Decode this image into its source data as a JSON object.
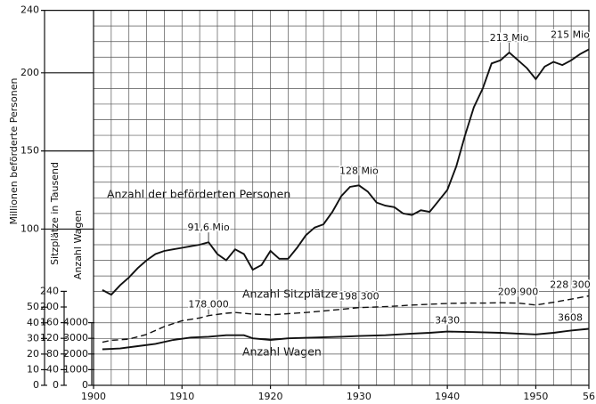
{
  "chart_data": {
    "type": "line",
    "ylabel": "Millionen beförderte Personen",
    "y2label": "Sitzplätze in Tausend",
    "y3label": "Anzahl Wagen",
    "annotations": [
      "Anzahl der beförderten Personen",
      "Anzahl Sitzplätze",
      "Anzahl Wagen"
    ],
    "xlim": [
      1900,
      1956
    ],
    "xticks": [
      1900,
      1910,
      1920,
      1930,
      1940,
      1950,
      {
        "value": 1956,
        "label": "56"
      }
    ],
    "ylim": [
      0,
      240
    ],
    "yticks": [
      0,
      10,
      20,
      30,
      40,
      50,
      100,
      150,
      200,
      240
    ],
    "y2lim": [
      0,
      240
    ],
    "y2ticks": [
      0,
      40,
      80,
      120,
      160,
      200,
      240
    ],
    "y3lim": [
      0,
      4000
    ],
    "y3ticks": [
      0,
      1000,
      2000,
      3000,
      4000
    ],
    "grid": true,
    "series": [
      {
        "name": "Anzahl der beförderten Personen",
        "color": "#111111",
        "axis": "y",
        "dash": false,
        "x": [
          1901,
          1902,
          1903,
          1904,
          1905,
          1906,
          1907,
          1908,
          1909,
          1910,
          1911,
          1912,
          1913,
          1914,
          1915,
          1916,
          1917,
          1918,
          1919,
          1920,
          1921,
          1922,
          1923,
          1924,
          1925,
          1926,
          1927,
          1928,
          1929,
          1930,
          1931,
          1932,
          1933,
          1934,
          1935,
          1936,
          1937,
          1938,
          1939,
          1940,
          1941,
          1942,
          1943,
          1944,
          1945,
          1946,
          1947,
          1948,
          1949,
          1950,
          1951,
          1952,
          1953,
          1954,
          1955,
          1956
        ],
        "values": [
          61,
          58,
          64,
          69,
          75,
          80,
          84,
          86,
          87,
          88,
          89,
          90,
          91.6,
          84,
          80,
          87,
          84,
          74,
          77,
          86,
          81,
          81,
          88,
          96,
          101,
          103,
          111,
          121,
          127,
          128,
          124,
          117,
          115,
          114,
          110,
          109,
          112,
          111,
          118,
          125,
          140,
          160,
          178,
          190,
          206,
          208,
          213,
          208,
          203,
          196,
          204,
          207,
          205,
          208,
          212,
          215
        ],
        "value_labels": [
          null,
          null,
          null,
          null,
          null,
          null,
          null,
          null,
          null,
          null,
          null,
          null,
          "91,6 Mio",
          null,
          null,
          null,
          null,
          null,
          null,
          null,
          null,
          null,
          null,
          null,
          null,
          null,
          null,
          null,
          null,
          "128 Mio",
          null,
          null,
          null,
          null,
          null,
          null,
          null,
          null,
          null,
          null,
          null,
          null,
          null,
          null,
          null,
          null,
          "213 Mio",
          null,
          null,
          null,
          null,
          null,
          null,
          null,
          null,
          "215 Mio"
        ]
      },
      {
        "name": "Anzahl Sitzplätze",
        "color": "#111111",
        "axis": "y2",
        "dash": true,
        "x": [
          1901,
          1902,
          1904,
          1906,
          1908,
          1910,
          1912,
          1913,
          1915,
          1916,
          1918,
          1920,
          1922,
          1924,
          1926,
          1928,
          1930,
          1932,
          1934,
          1936,
          1938,
          1940,
          1942,
          1944,
          1946,
          1948,
          1950,
          1952,
          1954,
          1956
        ],
        "values": [
          110,
          115,
          118,
          130,
          150,
          165,
          172,
          178,
          184,
          186,
          182,
          180,
          183,
          186,
          190,
          194,
          198.3,
          200,
          202,
          205,
          207,
          209,
          210,
          210,
          211,
          209.9,
          205,
          212,
          220,
          228.3
        ],
        "value_labels": [
          null,
          null,
          null,
          null,
          null,
          null,
          null,
          "178 000",
          null,
          null,
          null,
          null,
          null,
          null,
          null,
          null,
          "198 300",
          null,
          null,
          null,
          null,
          null,
          null,
          null,
          null,
          "209 900",
          null,
          null,
          null,
          "228 300"
        ]
      },
      {
        "name": "Anzahl Wagen",
        "color": "#111111",
        "axis": "y3",
        "dash": false,
        "x": [
          1901,
          1903,
          1905,
          1907,
          1909,
          1911,
          1913,
          1915,
          1917,
          1918,
          1920,
          1922,
          1925,
          1928,
          1930,
          1933,
          1936,
          1938,
          1940,
          1943,
          1946,
          1948,
          1950,
          1952,
          1954,
          1956
        ],
        "values": [
          2300,
          2350,
          2500,
          2650,
          2900,
          3050,
          3100,
          3200,
          3200,
          3000,
          2900,
          3000,
          3050,
          3100,
          3150,
          3200,
          3300,
          3350,
          3430,
          3400,
          3350,
          3300,
          3250,
          3350,
          3500,
          3608
        ],
        "value_labels": [
          null,
          null,
          null,
          null,
          null,
          null,
          null,
          null,
          null,
          null,
          null,
          null,
          null,
          null,
          null,
          null,
          null,
          null,
          "3430",
          null,
          null,
          null,
          null,
          null,
          null,
          "3608"
        ]
      }
    ]
  }
}
